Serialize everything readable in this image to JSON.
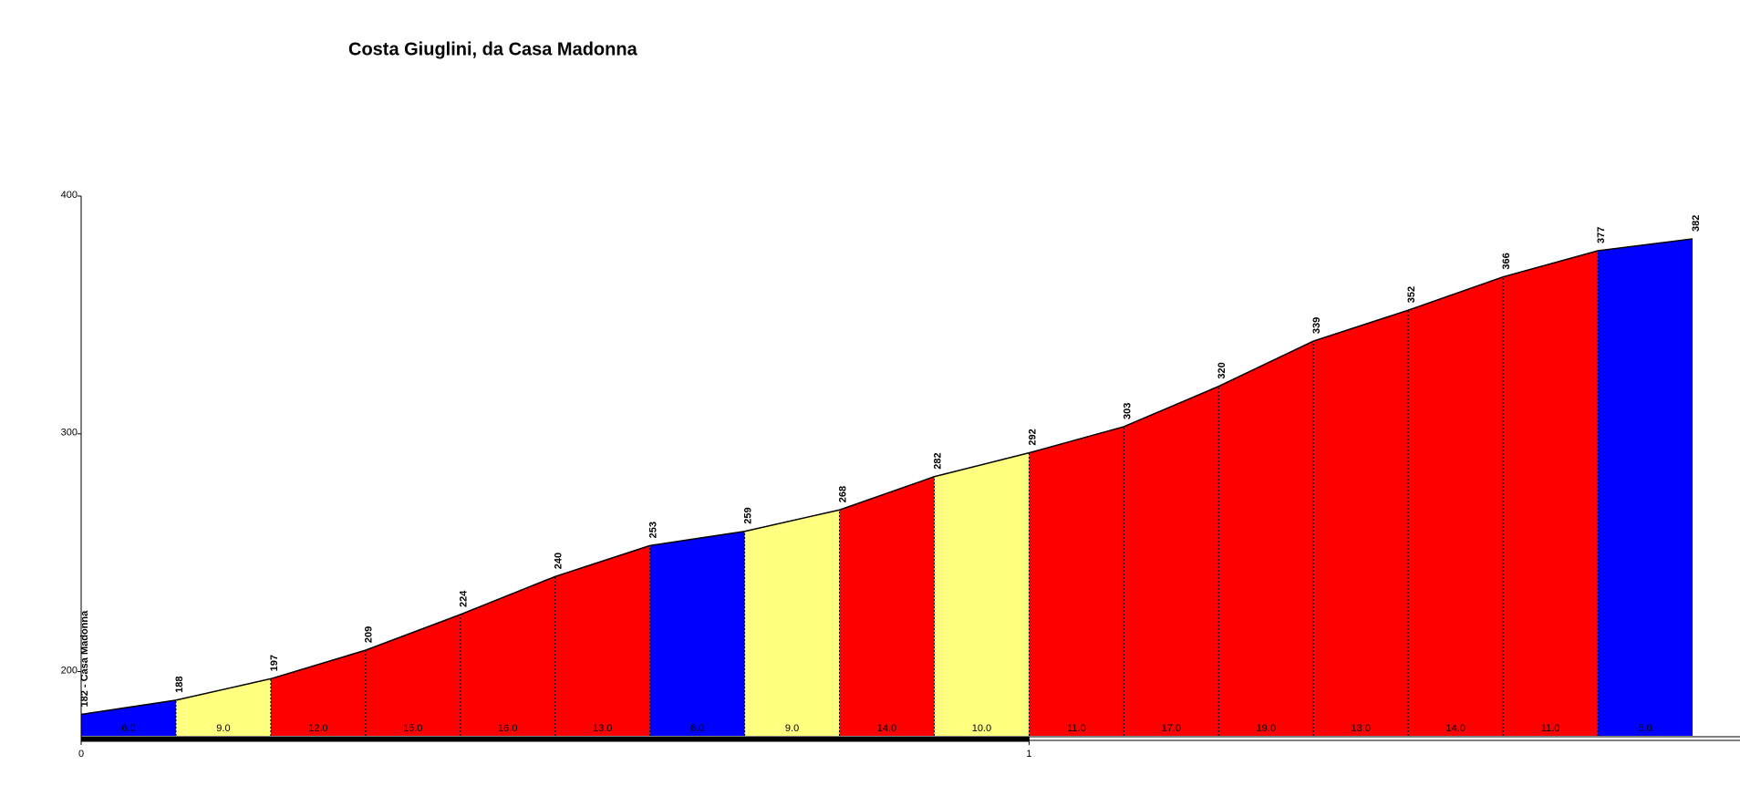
{
  "chart_data": {
    "type": "area",
    "title": "Costa Giuglini, da Casa Madonna",
    "x": [
      0,
      0.1,
      0.2,
      0.3,
      0.4,
      0.5,
      0.6,
      0.7,
      0.8,
      0.9,
      1.0,
      1.1,
      1.2,
      1.3,
      1.4,
      1.5,
      1.6,
      1.7
    ],
    "elevation": {
      "values": [
        182,
        188,
        197,
        209,
        224,
        240,
        253,
        259,
        268,
        282,
        292,
        303,
        320,
        339,
        352,
        366,
        377,
        382
      ],
      "value_labels": [
        "182 - Casa Madonna",
        "188",
        "197",
        "209",
        "224",
        "240",
        "253",
        "259",
        "268",
        "282",
        "292",
        "303",
        "320",
        "339",
        "352",
        "366",
        "377",
        "382"
      ]
    },
    "gradients": {
      "values": [
        6,
        9,
        12,
        15,
        16,
        13,
        6,
        9,
        14,
        10,
        11,
        17,
        19,
        13,
        14,
        11,
        5
      ],
      "value_labels": [
        "6.0",
        "9.0",
        "12.0",
        "15.0",
        "16.0",
        "13.0",
        "6.0",
        "9.0",
        "14.0",
        "10.0",
        "11.0",
        "17.0",
        "19.0",
        "13.0",
        "14.0",
        "11.0",
        "5.0"
      ],
      "colors": [
        "#0000ff",
        "#ffff80",
        "#ff0000",
        "#ff0000",
        "#ff0000",
        "#ff0000",
        "#0000ff",
        "#ffff80",
        "#ff0000",
        "#ffff80",
        "#ff0000",
        "#ff0000",
        "#ff0000",
        "#ff0000",
        "#ff0000",
        "#ff0000",
        "#0000ff"
      ]
    },
    "xlim": [
      0,
      1.75
    ],
    "xticks": [
      0,
      1
    ],
    "ylim": [
      173,
      400
    ],
    "yticks": [
      200,
      300,
      400
    ]
  }
}
